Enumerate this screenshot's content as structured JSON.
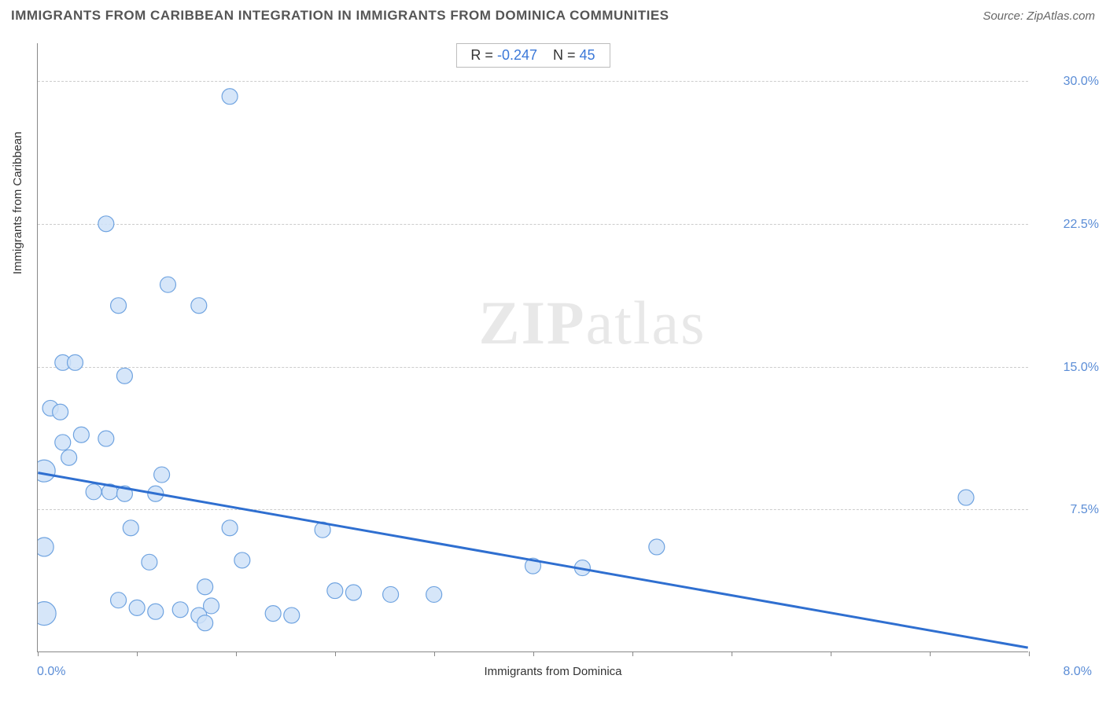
{
  "title": "IMMIGRANTS FROM CARIBBEAN INTEGRATION IN IMMIGRANTS FROM DOMINICA COMMUNITIES",
  "source": "Source: ZipAtlas.com",
  "watermark_main": "ZIP",
  "watermark_sub": "atlas",
  "chart": {
    "type": "scatter",
    "x_label": "Immigrants from Dominica",
    "y_label": "Immigrants from Caribbean",
    "xlim": [
      0.0,
      8.0
    ],
    "ylim": [
      0.0,
      32.0
    ],
    "x_origin_label": "0.0%",
    "x_max_label": "8.0%",
    "y_ticks": [
      {
        "v": 7.5,
        "label": "7.5%"
      },
      {
        "v": 15.0,
        "label": "15.0%"
      },
      {
        "v": 22.5,
        "label": "22.5%"
      },
      {
        "v": 30.0,
        "label": "30.0%"
      }
    ],
    "x_tick_positions": [
      0.0,
      0.8,
      1.6,
      2.4,
      3.2,
      4.0,
      4.8,
      5.6,
      6.4,
      7.2,
      8.0
    ],
    "grid_color": "#cccccc",
    "background_color": "#ffffff",
    "marker_fill": "#cfe2f8",
    "marker_stroke": "#6fa3e0",
    "marker_radius": 10,
    "trend_line_color": "#2f6fd0",
    "trend_line_width": 3,
    "trend_line": {
      "x1": 0.0,
      "y1": 9.4,
      "x2": 8.0,
      "y2": 0.2
    },
    "stats": {
      "R_label": "R =",
      "R": "-0.247",
      "N_label": "N =",
      "N": "45"
    },
    "points": [
      {
        "x": 1.55,
        "y": 29.2,
        "r": 10
      },
      {
        "x": 0.55,
        "y": 22.5,
        "r": 10
      },
      {
        "x": 1.05,
        "y": 19.3,
        "r": 10
      },
      {
        "x": 0.65,
        "y": 18.2,
        "r": 10
      },
      {
        "x": 1.3,
        "y": 18.2,
        "r": 10
      },
      {
        "x": 0.2,
        "y": 15.2,
        "r": 10
      },
      {
        "x": 0.3,
        "y": 15.2,
        "r": 10
      },
      {
        "x": 0.7,
        "y": 14.5,
        "r": 10
      },
      {
        "x": 0.1,
        "y": 12.8,
        "r": 10
      },
      {
        "x": 0.18,
        "y": 12.6,
        "r": 10
      },
      {
        "x": 0.35,
        "y": 11.4,
        "r": 10
      },
      {
        "x": 0.55,
        "y": 11.2,
        "r": 10
      },
      {
        "x": 0.2,
        "y": 11.0,
        "r": 10
      },
      {
        "x": 0.25,
        "y": 10.2,
        "r": 10
      },
      {
        "x": 1.0,
        "y": 9.3,
        "r": 10
      },
      {
        "x": 0.05,
        "y": 9.5,
        "r": 14
      },
      {
        "x": 7.5,
        "y": 8.1,
        "r": 10
      },
      {
        "x": 0.45,
        "y": 8.4,
        "r": 10
      },
      {
        "x": 0.58,
        "y": 8.4,
        "r": 10
      },
      {
        "x": 0.7,
        "y": 8.3,
        "r": 10
      },
      {
        "x": 0.95,
        "y": 8.3,
        "r": 10
      },
      {
        "x": 0.75,
        "y": 6.5,
        "r": 10
      },
      {
        "x": 1.55,
        "y": 6.5,
        "r": 10
      },
      {
        "x": 2.3,
        "y": 6.4,
        "r": 10
      },
      {
        "x": 0.05,
        "y": 5.5,
        "r": 12
      },
      {
        "x": 5.0,
        "y": 5.5,
        "r": 10
      },
      {
        "x": 0.9,
        "y": 4.7,
        "r": 10
      },
      {
        "x": 1.65,
        "y": 4.8,
        "r": 10
      },
      {
        "x": 4.0,
        "y": 4.5,
        "r": 10
      },
      {
        "x": 4.4,
        "y": 4.4,
        "r": 10
      },
      {
        "x": 1.35,
        "y": 3.4,
        "r": 10
      },
      {
        "x": 2.4,
        "y": 3.2,
        "r": 10
      },
      {
        "x": 2.55,
        "y": 3.1,
        "r": 10
      },
      {
        "x": 2.85,
        "y": 3.0,
        "r": 10
      },
      {
        "x": 3.2,
        "y": 3.0,
        "r": 10
      },
      {
        "x": 0.65,
        "y": 2.7,
        "r": 10
      },
      {
        "x": 0.8,
        "y": 2.3,
        "r": 10
      },
      {
        "x": 0.95,
        "y": 2.1,
        "r": 10
      },
      {
        "x": 1.15,
        "y": 2.2,
        "r": 10
      },
      {
        "x": 1.3,
        "y": 1.9,
        "r": 10
      },
      {
        "x": 1.4,
        "y": 2.4,
        "r": 10
      },
      {
        "x": 1.9,
        "y": 2.0,
        "r": 10
      },
      {
        "x": 2.05,
        "y": 1.9,
        "r": 10
      },
      {
        "x": 1.35,
        "y": 1.5,
        "r": 10
      },
      {
        "x": 0.05,
        "y": 2.0,
        "r": 15
      }
    ]
  }
}
